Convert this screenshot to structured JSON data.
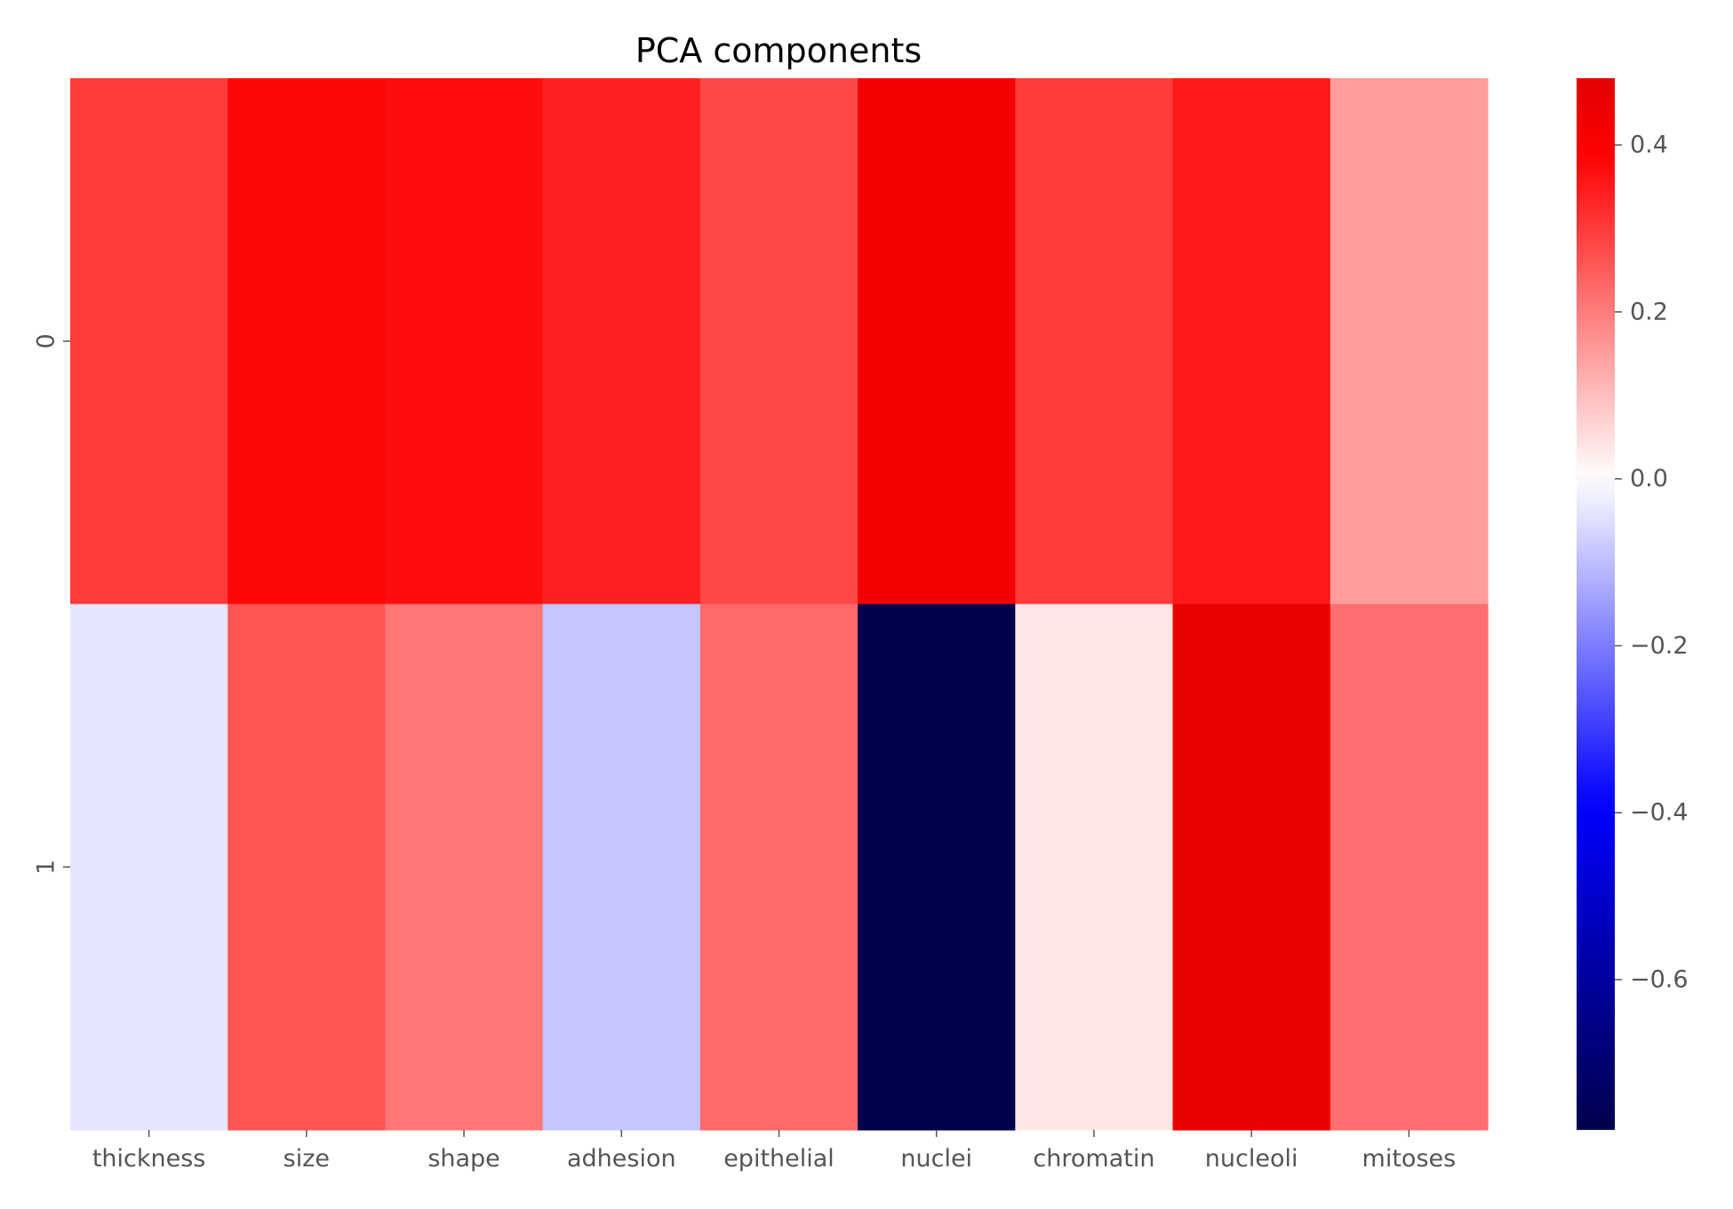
{
  "chart_data": {
    "type": "heatmap",
    "title": "PCA components",
    "xlabel": "",
    "ylabel": "",
    "columns": [
      "thickness",
      "size",
      "shape",
      "adhesion",
      "epithelial",
      "nuclei",
      "chromatin",
      "nucleoli",
      "mitoses"
    ],
    "rows": [
      "0",
      "1"
    ],
    "values": [
      [
        0.3,
        0.38,
        0.37,
        0.34,
        0.28,
        0.42,
        0.3,
        0.35,
        0.15
      ],
      [
        -0.04,
        0.26,
        0.21,
        -0.09,
        0.23,
        -0.78,
        0.04,
        0.46,
        0.22
      ]
    ],
    "colorbar": {
      "range": [
        -0.78,
        0.48
      ],
      "ticks": [
        0.4,
        0.2,
        0.0,
        -0.2,
        -0.4,
        -0.6
      ],
      "tick_labels": [
        "0.4",
        "0.2",
        "0.0",
        "−0.2",
        "−0.4",
        "−0.6"
      ]
    },
    "colormap": "seismic",
    "grid": false
  }
}
